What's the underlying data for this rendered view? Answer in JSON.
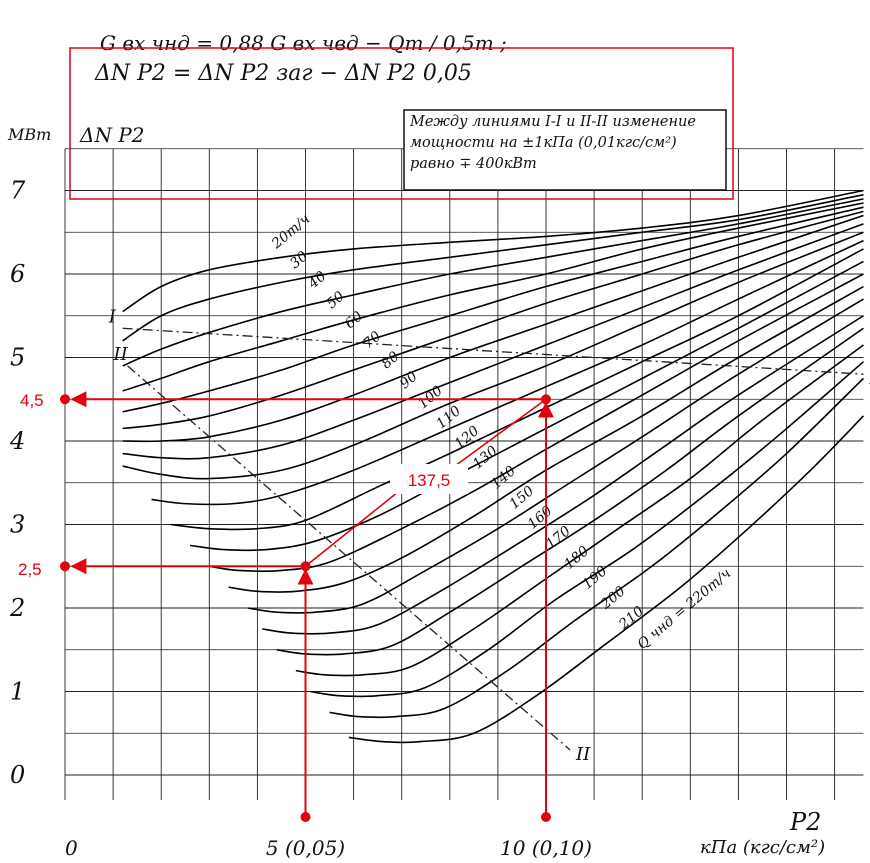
{
  "chart_data": {
    "type": "line",
    "title_formula_1": "G вх чнд = 0,88 G вх чвд − Qт / 0,5т ;",
    "title_formula_2": "ΔN P2 = ΔN P2 заг − ΔN P2 0,05",
    "ylabel": "ΔN P2",
    "yunit": "МВт",
    "xunit": "кПа (кгс/см²)",
    "xlabel_symbol": "P2",
    "annotation": "Между линиями I-I и II-II изменение мощности на ±1кПа (0,01кгс/см²) равно ∓ 400кВт",
    "y_ticks": [
      "0",
      "1",
      "2",
      "3",
      "4",
      "5",
      "6",
      "7"
    ],
    "x_ticks": [
      "0",
      "5 (0,05)",
      "10 (0,10)"
    ],
    "xlim": [
      0,
      16.6
    ],
    "ylim": [
      -0.3,
      7.6
    ],
    "flow_label_prefix": "Q чнд = ",
    "flow_unit": "т/ч",
    "series": [
      {
        "name": "20",
        "x": [
          1.2,
          2.0,
          3.0,
          4.5,
          6.0,
          8.0,
          10.0,
          12.0,
          14.0,
          16.6
        ],
        "y": [
          5.55,
          5.85,
          6.05,
          6.2,
          6.3,
          6.38,
          6.45,
          6.55,
          6.7,
          7.0
        ]
      },
      {
        "name": "30",
        "x": [
          1.2,
          2.0,
          3.0,
          4.5,
          6.0,
          8.0,
          10.0,
          12.0,
          14.0,
          16.6
        ],
        "y": [
          5.2,
          5.5,
          5.7,
          5.9,
          6.05,
          6.2,
          6.35,
          6.5,
          6.65,
          6.95
        ]
      },
      {
        "name": "40",
        "x": [
          1.2,
          2.0,
          3.0,
          4.5,
          6.0,
          8.0,
          10.0,
          12.0,
          14.0,
          16.6
        ],
        "y": [
          4.9,
          5.1,
          5.3,
          5.55,
          5.75,
          6.0,
          6.2,
          6.4,
          6.6,
          6.9
        ]
      },
      {
        "name": "50",
        "x": [
          1.2,
          2.0,
          3.0,
          4.5,
          6.0,
          8.0,
          10.0,
          12.0,
          14.0,
          16.6
        ],
        "y": [
          4.6,
          4.75,
          4.95,
          5.2,
          5.45,
          5.75,
          6.0,
          6.3,
          6.55,
          6.85
        ]
      },
      {
        "name": "60",
        "x": [
          1.2,
          2.0,
          3.0,
          4.5,
          6.0,
          8.0,
          10.0,
          12.0,
          14.0,
          16.6
        ],
        "y": [
          4.35,
          4.45,
          4.6,
          4.85,
          5.15,
          5.5,
          5.85,
          6.15,
          6.45,
          6.8
        ]
      },
      {
        "name": "70",
        "x": [
          1.2,
          2.0,
          3.0,
          4.5,
          6.0,
          8.0,
          10.0,
          12.0,
          14.0,
          16.6
        ],
        "y": [
          4.15,
          4.2,
          4.3,
          4.55,
          4.85,
          5.25,
          5.65,
          6.0,
          6.35,
          6.75
        ]
      },
      {
        "name": "80",
        "x": [
          1.2,
          2.0,
          3.0,
          4.5,
          6.0,
          8.0,
          10.0,
          12.0,
          14.0,
          16.6
        ],
        "y": [
          4.0,
          4.0,
          4.05,
          4.25,
          4.55,
          5.0,
          5.4,
          5.8,
          6.2,
          6.7
        ]
      },
      {
        "name": "90",
        "x": [
          1.2,
          2.0,
          3.0,
          4.5,
          6.0,
          8.0,
          10.0,
          12.0,
          14.0,
          16.6
        ],
        "y": [
          3.85,
          3.8,
          3.8,
          3.95,
          4.25,
          4.7,
          5.15,
          5.6,
          6.05,
          6.6
        ]
      },
      {
        "name": "100",
        "x": [
          1.2,
          2.0,
          3.0,
          4.5,
          6.0,
          8.0,
          10.0,
          12.0,
          14.0,
          16.6
        ],
        "y": [
          3.7,
          3.6,
          3.55,
          3.65,
          3.95,
          4.45,
          4.9,
          5.4,
          5.9,
          6.5
        ]
      },
      {
        "name": "110",
        "x": [
          1.8,
          2.5,
          3.5,
          4.5,
          6.0,
          8.0,
          10.0,
          12.0,
          14.0,
          16.6
        ],
        "y": [
          3.3,
          3.25,
          3.25,
          3.35,
          3.65,
          4.15,
          4.65,
          5.15,
          5.7,
          6.4
        ]
      },
      {
        "name": "120",
        "x": [
          2.2,
          3.0,
          4.0,
          5.0,
          6.5,
          8.0,
          10.0,
          12.0,
          14.0,
          16.6
        ],
        "y": [
          3.0,
          2.95,
          2.95,
          3.05,
          3.45,
          3.85,
          4.4,
          4.95,
          5.5,
          6.3
        ]
      },
      {
        "name": "130",
        "x": [
          2.6,
          3.3,
          4.2,
          5.2,
          6.5,
          8.0,
          10.0,
          12.0,
          14.0,
          16.6
        ],
        "y": [
          2.75,
          2.7,
          2.7,
          2.8,
          3.1,
          3.55,
          4.15,
          4.75,
          5.35,
          6.15
        ]
      },
      {
        "name": "140",
        "x": [
          3.0,
          3.6,
          4.5,
          5.5,
          7.0,
          8.5,
          10.0,
          12.0,
          14.0,
          16.6
        ],
        "y": [
          2.5,
          2.45,
          2.45,
          2.55,
          2.95,
          3.4,
          3.9,
          4.55,
          5.2,
          6.0
        ]
      },
      {
        "name": "150",
        "x": [
          3.4,
          4.0,
          4.8,
          5.8,
          7.0,
          8.5,
          10.0,
          12.0,
          14.0,
          16.6
        ],
        "y": [
          2.25,
          2.2,
          2.2,
          2.3,
          2.6,
          3.1,
          3.65,
          4.3,
          5.0,
          5.85
        ]
      },
      {
        "name": "160",
        "x": [
          3.8,
          4.4,
          5.2,
          6.2,
          7.5,
          9.0,
          10.5,
          12.0,
          14.0,
          16.6
        ],
        "y": [
          2.0,
          1.95,
          1.95,
          2.05,
          2.45,
          2.95,
          3.5,
          4.05,
          4.8,
          5.7
        ]
      },
      {
        "name": "170",
        "x": [
          4.1,
          4.7,
          5.5,
          6.5,
          7.8,
          9.5,
          11.0,
          12.5,
          14.0,
          16.6
        ],
        "y": [
          1.75,
          1.7,
          1.7,
          1.8,
          2.2,
          2.8,
          3.35,
          3.95,
          4.55,
          5.5
        ]
      },
      {
        "name": "180",
        "x": [
          4.4,
          5.0,
          5.8,
          6.8,
          8.0,
          9.5,
          11.0,
          12.5,
          14.0,
          16.6
        ],
        "y": [
          1.5,
          1.45,
          1.45,
          1.55,
          1.95,
          2.5,
          3.05,
          3.65,
          4.3,
          5.35
        ]
      },
      {
        "name": "190",
        "x": [
          4.8,
          5.4,
          6.2,
          7.2,
          8.5,
          10.0,
          11.5,
          13.0,
          14.5,
          16.6
        ],
        "y": [
          1.25,
          1.2,
          1.2,
          1.3,
          1.75,
          2.35,
          2.95,
          3.55,
          4.25,
          5.15
        ]
      },
      {
        "name": "200",
        "x": [
          5.1,
          5.7,
          6.5,
          7.5,
          8.8,
          10.2,
          11.8,
          13.3,
          14.8,
          16.6
        ],
        "y": [
          1.0,
          0.95,
          0.95,
          1.05,
          1.5,
          2.1,
          2.7,
          3.35,
          4.05,
          4.95
        ]
      },
      {
        "name": "210",
        "x": [
          5.5,
          6.1,
          6.9,
          7.9,
          9.2,
          10.6,
          12.2,
          13.6,
          15.0,
          16.6
        ],
        "y": [
          0.75,
          0.7,
          0.7,
          0.8,
          1.25,
          1.85,
          2.5,
          3.15,
          3.85,
          4.75
        ]
      },
      {
        "name": "220",
        "x": [
          5.9,
          6.6,
          7.4,
          8.5,
          9.8,
          11.2,
          12.8,
          14.2,
          15.5,
          16.6
        ],
        "y": [
          0.45,
          0.4,
          0.4,
          0.5,
          0.95,
          1.55,
          2.25,
          2.95,
          3.65,
          4.3
        ]
      }
    ],
    "guide_lines": [
      {
        "name": "I",
        "x": [
          1.2,
          16.6
        ],
        "y": [
          5.35,
          4.8
        ]
      },
      {
        "name": "II",
        "x": [
          1.3,
          10.5
        ],
        "y": [
          4.9,
          0.3
        ]
      }
    ],
    "example": {
      "flow_label": "137,5",
      "points": [
        {
          "x": 5.0,
          "y": 2.5,
          "label": "2,5"
        },
        {
          "x": 10.0,
          "y": 4.5,
          "label": "4,5"
        }
      ]
    }
  }
}
